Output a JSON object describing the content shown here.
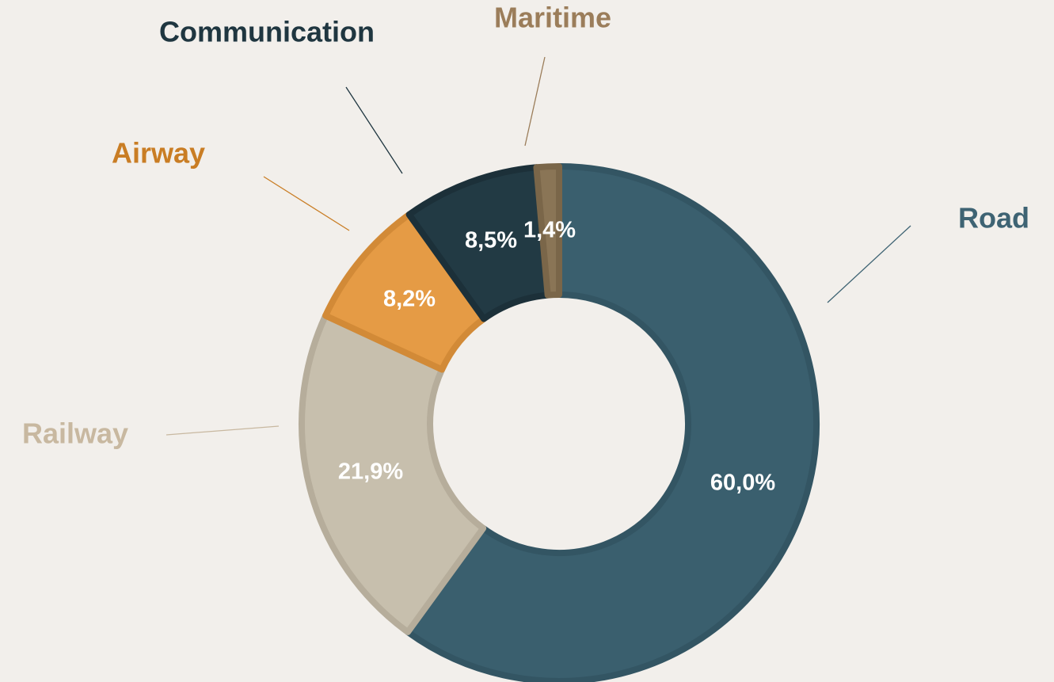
{
  "chart_data": {
    "type": "donut",
    "categories": [
      "Road",
      "Railway",
      "Airway",
      "Communication",
      "Maritime"
    ],
    "values": [
      60.0,
      21.9,
      8.2,
      8.5,
      1.4
    ],
    "value_labels": [
      "60,0%",
      "21,9%",
      "8,2%",
      "8,5%",
      "1,4%"
    ],
    "colors": [
      "#3a5f6e",
      "#c7bfad",
      "#e59b45",
      "#223a44",
      "#8a7556"
    ]
  }
}
